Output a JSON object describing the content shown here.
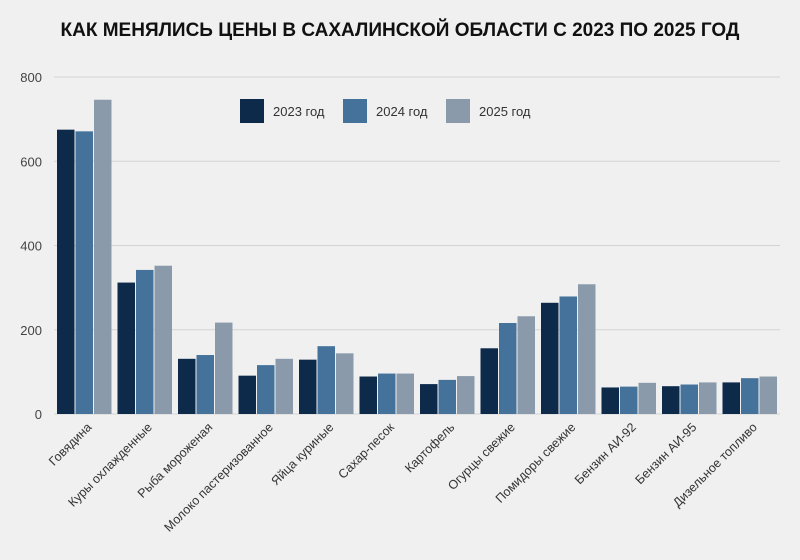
{
  "chart_data": {
    "type": "bar",
    "title": "КАК МЕНЯЛИСЬ ЦЕНЫ В САХАЛИНСКОЙ ОБЛАСТИ С 2023 ПО 2025 ГОД",
    "xlabel": "",
    "ylabel": "",
    "ylim": [
      0,
      800
    ],
    "yticks": [
      0,
      200,
      400,
      600,
      800
    ],
    "grid": true,
    "legend_position": "top-center",
    "categories": [
      "Говядина",
      "Куры охлажденные",
      "Рыба мороженая",
      "Молоко пастеризованное",
      "Яйца куриные",
      "Сахар-песок",
      "Картофель",
      "Огурцы свежие",
      "Помидоры свежие",
      "Бензин АИ-92",
      "Бензин АИ-95",
      "Дизельное топливо"
    ],
    "series": [
      {
        "name": "2023 год",
        "color": "#0d2a4a",
        "values": [
          675,
          312,
          131,
          91,
          129,
          89,
          71,
          156,
          264,
          63,
          66,
          75
        ]
      },
      {
        "name": "2024 год",
        "color": "#44729a",
        "values": [
          671,
          342,
          140,
          116,
          161,
          96,
          81,
          216,
          279,
          65,
          70,
          85
        ]
      },
      {
        "name": "2025 год",
        "color": "#8a9aaa",
        "values": [
          746,
          352,
          217,
          131,
          144,
          96,
          90,
          232,
          308,
          74,
          75,
          89
        ]
      }
    ]
  }
}
